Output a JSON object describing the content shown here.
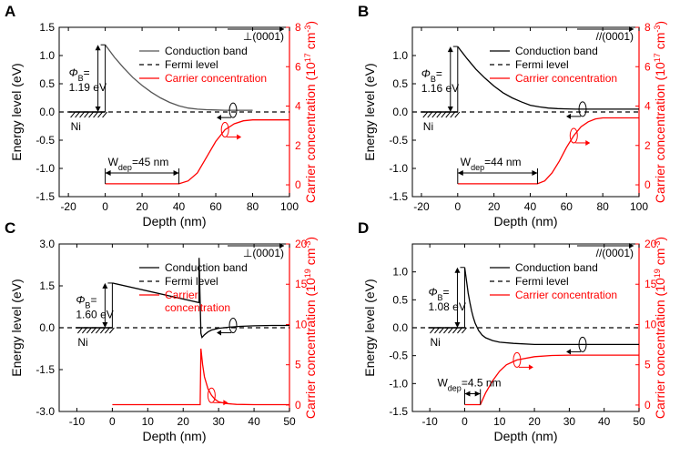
{
  "chart_data": [
    {
      "panel": "A",
      "type": "line",
      "xlabel": "Depth (nm)",
      "ylabel_left": "Energy level (eV)",
      "ylabel_right": "Carrier concentration (10",
      "ylabel_right_exp": "17",
      "ylabel_right_unit": " cm",
      "ylabel_right_unit_exp": "-3",
      "xlim": [
        -25,
        100
      ],
      "xticks": [
        -20,
        0,
        20,
        40,
        60,
        80,
        100
      ],
      "ylim_left": [
        -1.5,
        1.5
      ],
      "yticks_left": [
        -1.5,
        -1.0,
        -0.5,
        0.0,
        0.5,
        1.0,
        1.5
      ],
      "ylim_right": [
        -0.6,
        8
      ],
      "yticks_right": [
        0,
        2,
        4,
        6,
        8
      ],
      "orientation": "⊥(0001)",
      "barrier_prefix": "Φ",
      "barrier_sub": "B",
      "barrier_eq": "=",
      "barrier_value": "1.19 eV",
      "metal": "Ni",
      "wdep_prefix": "W",
      "wdep_sub": "dep",
      "wdep_value": "=45 nm",
      "legend": [
        "Conduction band",
        "Fermi level",
        "Carrier concentration"
      ],
      "colors": {
        "cb": "#555555",
        "fermi": "#000000",
        "carrier": "#ff0000"
      },
      "series": [
        {
          "name": "Conduction band",
          "axis": "left",
          "x": [
            0,
            5,
            10,
            15,
            20,
            25,
            30,
            35,
            40,
            45,
            50,
            55,
            60,
            65,
            70,
            75,
            80
          ],
          "y": [
            1.19,
            0.97,
            0.78,
            0.61,
            0.47,
            0.35,
            0.25,
            0.17,
            0.11,
            0.07,
            0.05,
            0.04,
            0.035,
            0.03,
            0.03,
            0.03,
            0.03
          ]
        },
        {
          "name": "Fermi level",
          "axis": "left",
          "x": [
            -25,
            100
          ],
          "y": [
            0.0,
            0.0
          ]
        },
        {
          "name": "Carrier concentration",
          "axis": "right",
          "x": [
            0,
            40,
            45,
            50,
            55,
            60,
            65,
            70,
            75,
            80,
            90,
            100
          ],
          "y": [
            0.05,
            0.05,
            0.2,
            0.6,
            1.4,
            2.2,
            2.8,
            3.1,
            3.25,
            3.3,
            3.3,
            3.3
          ]
        }
      ]
    },
    {
      "panel": "B",
      "type": "line",
      "xlabel": "Depth (nm)",
      "ylabel_left": "Energy level (eV)",
      "ylabel_right": "Carrier concentration (10",
      "ylabel_right_exp": "17",
      "ylabel_right_unit": " cm",
      "ylabel_right_unit_exp": "-3",
      "xlim": [
        -25,
        100
      ],
      "xticks": [
        -20,
        0,
        20,
        40,
        60,
        80,
        100
      ],
      "ylim_left": [
        -1.5,
        1.5
      ],
      "yticks_left": [
        -1.5,
        -1.0,
        -0.5,
        0.0,
        0.5,
        1.0
      ],
      "ylim_right": [
        -0.6,
        8
      ],
      "yticks_right": [
        0,
        2,
        4,
        6,
        8
      ],
      "orientation": "//(0001)",
      "barrier_prefix": "Φ",
      "barrier_sub": "B",
      "barrier_eq": "=",
      "barrier_value": "1.16 eV",
      "metal": "Ni",
      "wdep_prefix": "W",
      "wdep_sub": "dep",
      "wdep_value": "=44 nm",
      "legend": [
        "Conduction band",
        "Fermi level",
        "Carrier concentration"
      ],
      "colors": {
        "cb": "#000000",
        "fermi": "#000000",
        "carrier": "#ff0000"
      },
      "series": [
        {
          "name": "Conduction band",
          "axis": "left",
          "x": [
            0,
            5,
            10,
            15,
            20,
            25,
            30,
            35,
            40,
            45,
            50,
            55,
            60,
            65,
            70,
            80,
            100
          ],
          "y": [
            1.16,
            0.95,
            0.76,
            0.6,
            0.46,
            0.34,
            0.25,
            0.18,
            0.12,
            0.09,
            0.07,
            0.06,
            0.055,
            0.05,
            0.05,
            0.05,
            0.05
          ]
        },
        {
          "name": "Fermi level",
          "axis": "left",
          "x": [
            -25,
            100
          ],
          "y": [
            0.0,
            0.0
          ]
        },
        {
          "name": "Carrier concentration",
          "axis": "right",
          "x": [
            0,
            44,
            48,
            52,
            56,
            60,
            64,
            68,
            72,
            76,
            80,
            90,
            100
          ],
          "y": [
            0.05,
            0.05,
            0.2,
            0.6,
            1.2,
            1.9,
            2.5,
            2.95,
            3.2,
            3.35,
            3.4,
            3.4,
            3.4
          ]
        }
      ]
    },
    {
      "panel": "C",
      "type": "line",
      "xlabel": "Depth (nm)",
      "ylabel_left": "Energy level (eV)",
      "ylabel_right": "Carrier concentration (10",
      "ylabel_right_exp": "19",
      "ylabel_right_unit": " cm",
      "ylabel_right_unit_exp": "-3",
      "xlim": [
        -15,
        50
      ],
      "xticks": [
        -10,
        0,
        10,
        20,
        30,
        40,
        50
      ],
      "ylim_left": [
        -3.0,
        3.0
      ],
      "yticks_left": [
        -3.0,
        -1.5,
        0.0,
        1.5,
        3.0
      ],
      "ylim_right": [
        -0.8,
        20
      ],
      "yticks_right": [
        0,
        5,
        10,
        15,
        20
      ],
      "orientation": "⊥(0001)",
      "barrier_prefix": "Φ",
      "barrier_sub": "B",
      "barrier_eq": "=",
      "barrier_value": "1.60 eV",
      "metal": "Ni",
      "legend": [
        "Conduction band",
        "Fermi level",
        "Carrier",
        "concentration"
      ],
      "colors": {
        "cb": "#000000",
        "fermi": "#000000",
        "carrier": "#ff0000"
      },
      "series": [
        {
          "name": "Conduction band",
          "axis": "left",
          "x": [
            0,
            24.5,
            24.5,
            25,
            25.3,
            26,
            27,
            28,
            30,
            33,
            36,
            40,
            45,
            50
          ],
          "y": [
            1.6,
            0.9,
            2.5,
            -0.2,
            -0.35,
            -0.25,
            -0.15,
            -0.08,
            -0.02,
            0.02,
            0.05,
            0.07,
            0.08,
            0.08
          ]
        },
        {
          "name": "Fermi level",
          "axis": "left",
          "x": [
            -15,
            50
          ],
          "y": [
            0.0,
            0.0
          ]
        },
        {
          "name": "Carrier concentration",
          "axis": "right",
          "x": [
            0,
            24.8,
            25,
            25.5,
            26,
            27,
            28,
            29,
            30,
            32,
            35,
            40,
            50
          ],
          "y": [
            0.05,
            0.05,
            7.0,
            5.0,
            3.5,
            2.0,
            1.2,
            0.7,
            0.4,
            0.2,
            0.08,
            0.05,
            0.05
          ]
        }
      ]
    },
    {
      "panel": "D",
      "type": "line",
      "xlabel": "Depth (nm)",
      "ylabel_left": "Energy level (eV)",
      "ylabel_right": "Carrier concentration (10",
      "ylabel_right_exp": "19",
      "ylabel_right_unit": " cm",
      "ylabel_right_unit_exp": "-3",
      "xlim": [
        -15,
        50
      ],
      "xticks": [
        -10,
        0,
        10,
        20,
        30,
        40,
        50
      ],
      "ylim_left": [
        -1.5,
        1.5
      ],
      "yticks_left": [
        -1.5,
        -1.0,
        -0.5,
        0.0,
        0.5,
        1.0
      ],
      "ylim_right": [
        -0.8,
        20
      ],
      "yticks_right": [
        0,
        5,
        10,
        15,
        20
      ],
      "orientation": "//(0001)",
      "barrier_prefix": "Φ",
      "barrier_sub": "B",
      "barrier_eq": "=",
      "barrier_value": "1.08 eV",
      "metal": "Ni",
      "wdep_prefix": "W",
      "wdep_sub": "dep",
      "wdep_value": "=4.5 nm",
      "legend": [
        "Conduction band",
        "Fermi level",
        "Carrier concentration"
      ],
      "colors": {
        "cb": "#000000",
        "fermi": "#000000",
        "carrier": "#ff0000"
      },
      "series": [
        {
          "name": "Conduction band",
          "axis": "left",
          "x": [
            0,
            0.5,
            1,
            1.5,
            2,
            2.5,
            3,
            4,
            5,
            6,
            8,
            10,
            14,
            20,
            30,
            50
          ],
          "y": [
            1.08,
            0.85,
            0.62,
            0.45,
            0.3,
            0.18,
            0.08,
            -0.05,
            -0.13,
            -0.18,
            -0.23,
            -0.26,
            -0.28,
            -0.3,
            -0.3,
            -0.3
          ]
        },
        {
          "name": "Fermi level",
          "axis": "left",
          "x": [
            -15,
            50
          ],
          "y": [
            0.0,
            0.0
          ]
        },
        {
          "name": "Carrier concentration",
          "axis": "right",
          "x": [
            0,
            4.5,
            6,
            8,
            10,
            12,
            15,
            20,
            25,
            30,
            40,
            50
          ],
          "y": [
            0.05,
            0.05,
            1.5,
            3.0,
            4.2,
            5.0,
            5.6,
            6.0,
            6.15,
            6.2,
            6.2,
            6.2
          ]
        }
      ]
    }
  ]
}
